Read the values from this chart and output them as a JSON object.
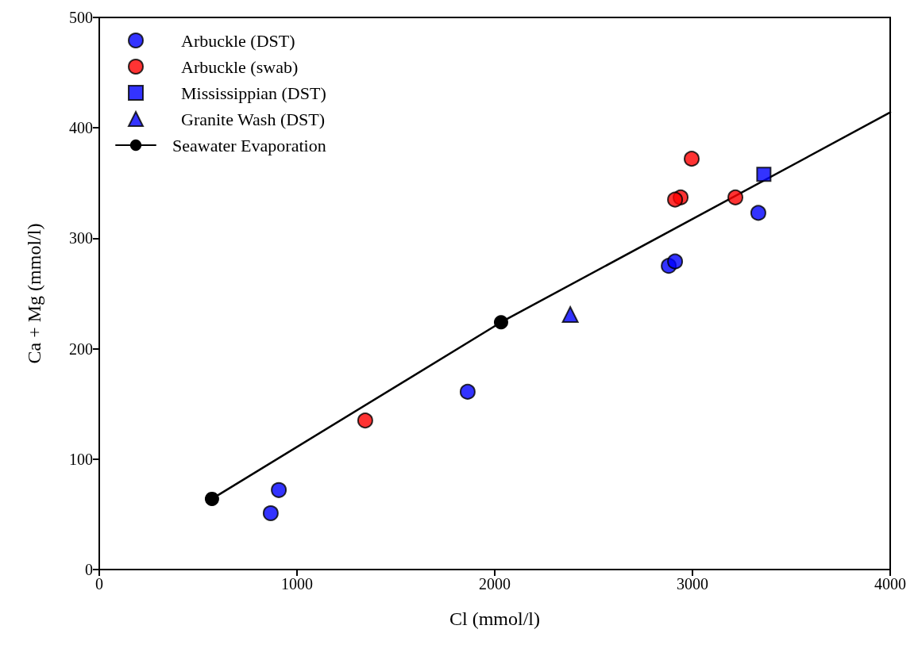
{
  "chart_data": {
    "type": "scatter",
    "xlabel": "Cl (mmol/l)",
    "ylabel": "Ca + Mg (mmol/l)",
    "xlim": [
      0,
      4000
    ],
    "xticks": [
      0,
      1000,
      2000,
      3000,
      4000
    ],
    "ylim": [
      0,
      500
    ],
    "yticks": [
      0,
      100,
      200,
      300,
      400,
      500
    ],
    "grid": false,
    "legend": "top left",
    "series": [
      {
        "name": "Arbuckle (DST)",
        "color": "#0000ff",
        "marker": "circle",
        "x": [
          867,
          908,
          1863,
          2880,
          2912,
          3333
        ],
        "values": [
          51,
          72,
          161,
          275,
          279,
          323
        ]
      },
      {
        "name": "Arbuckle (swab)",
        "color": "#ff0000",
        "marker": "circle",
        "x": [
          1345,
          2940,
          2912,
          2996,
          3217
        ],
        "values": [
          135,
          337,
          335,
          372,
          337
        ]
      },
      {
        "name": "Mississippian (DST)",
        "color": "#0000ff",
        "marker": "square",
        "x": [
          3361
        ],
        "values": [
          358
        ]
      },
      {
        "name": "Granite Wash (DST)",
        "color": "#0000ff",
        "marker": "triangle",
        "x": [
          2382
        ],
        "values": [
          231
        ]
      },
      {
        "name": "Seawater Evaporation",
        "type": "line",
        "color": "#000000",
        "marker": "circle",
        "x": [
          570,
          2032
        ],
        "values": [
          64,
          224
        ]
      },
      {
        "type": "line",
        "color": "#000000",
        "marker": "none",
        "x": [
          2032,
          4000
        ],
        "values": [
          224,
          414
        ]
      }
    ]
  }
}
